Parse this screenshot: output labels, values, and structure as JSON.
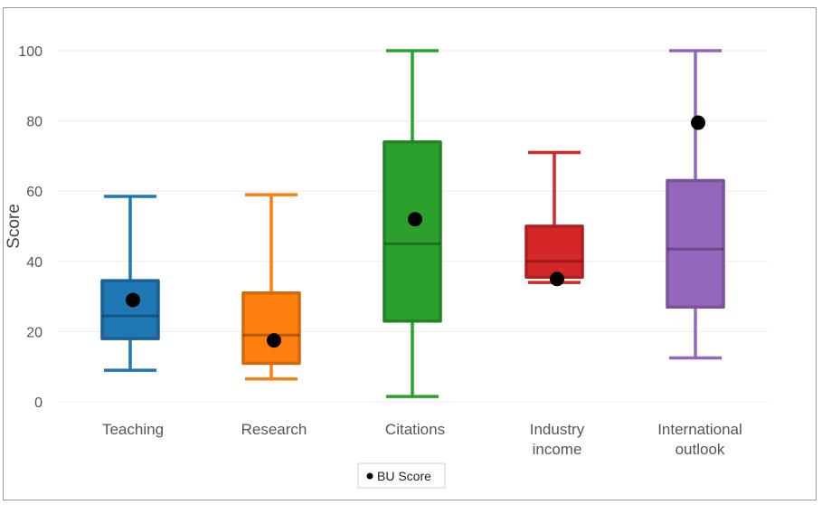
{
  "chart_data": {
    "type": "box",
    "ylabel": "Score",
    "ylim": [
      0,
      100
    ],
    "yticks": [
      0,
      20,
      40,
      60,
      80,
      100
    ],
    "grid": true,
    "legend": {
      "position": "bottom-center",
      "entries": [
        "BU Score"
      ]
    },
    "categories": [
      {
        "label_lines": [
          "Teaching"
        ],
        "color": "#1f77b4",
        "min": 9,
        "q1": 18,
        "median": 24.5,
        "q3": 34.5,
        "max": 58.5,
        "bu_score": 29
      },
      {
        "label_lines": [
          "Research"
        ],
        "color": "#ff7f0e",
        "min": 6.5,
        "q1": 11,
        "median": 19,
        "q3": 31,
        "max": 59,
        "bu_score": 17.5
      },
      {
        "label_lines": [
          "Citations"
        ],
        "color": "#2ca02c",
        "min": 1.5,
        "q1": 23,
        "median": 45,
        "q3": 74,
        "max": 100,
        "bu_score": 52
      },
      {
        "label_lines": [
          "Industry",
          "income"
        ],
        "color": "#d62728",
        "min": 34,
        "q1": 35.5,
        "median": 40,
        "q3": 50,
        "max": 71,
        "bu_score": 35
      },
      {
        "label_lines": [
          "International",
          "outlook"
        ],
        "color": "#9467bd",
        "min": 12.5,
        "q1": 27,
        "median": 43.5,
        "q3": 63,
        "max": 100,
        "bu_score": 79.5
      }
    ],
    "marker_color": "#000000"
  }
}
